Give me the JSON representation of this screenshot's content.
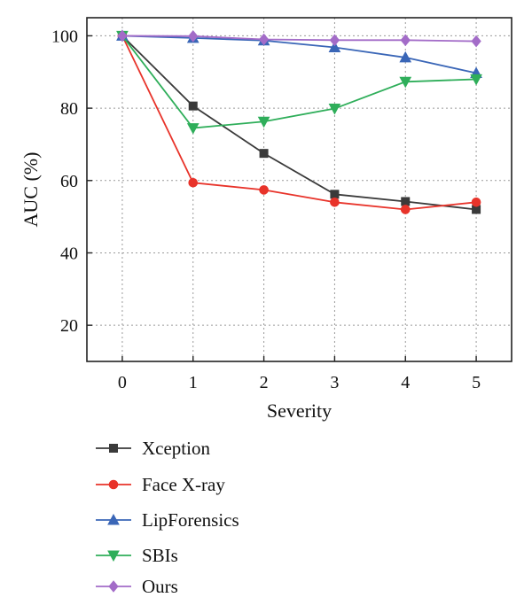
{
  "chart_data": {
    "type": "line",
    "xlabel": "Severity",
    "ylabel": "AUC (%)",
    "x": [
      0,
      1,
      2,
      3,
      4,
      5
    ],
    "xlim": [
      -0.5,
      5.5
    ],
    "ylim": [
      10,
      105
    ],
    "xticks": [
      "0",
      "1",
      "2",
      "3",
      "4",
      "5"
    ],
    "yticks": [
      "20",
      "40",
      "60",
      "80",
      "100"
    ],
    "grid": true,
    "legend_position": "bottom",
    "series": [
      {
        "name": "Xception",
        "marker": "square",
        "color": "#3a3a3a",
        "values": [
          100,
          80.6,
          67.5,
          56.2,
          54.2,
          52.0
        ]
      },
      {
        "name": "Face X-ray",
        "marker": "circle",
        "color": "#e8332a",
        "values": [
          100,
          59.4,
          57.4,
          54.0,
          52.0,
          54.0
        ]
      },
      {
        "name": "LipForensics",
        "marker": "triangle-up",
        "color": "#3a66b7",
        "values": [
          100,
          99.4,
          98.7,
          96.8,
          94.0,
          89.7
        ]
      },
      {
        "name": "SBIs",
        "marker": "triangle-down",
        "color": "#2fae5a",
        "values": [
          100,
          74.5,
          76.3,
          79.9,
          87.3,
          88.0
        ]
      },
      {
        "name": "Ours",
        "marker": "diamond",
        "color": "#a36cc8",
        "values": [
          100,
          99.9,
          99.0,
          98.8,
          98.8,
          98.5
        ]
      }
    ]
  }
}
